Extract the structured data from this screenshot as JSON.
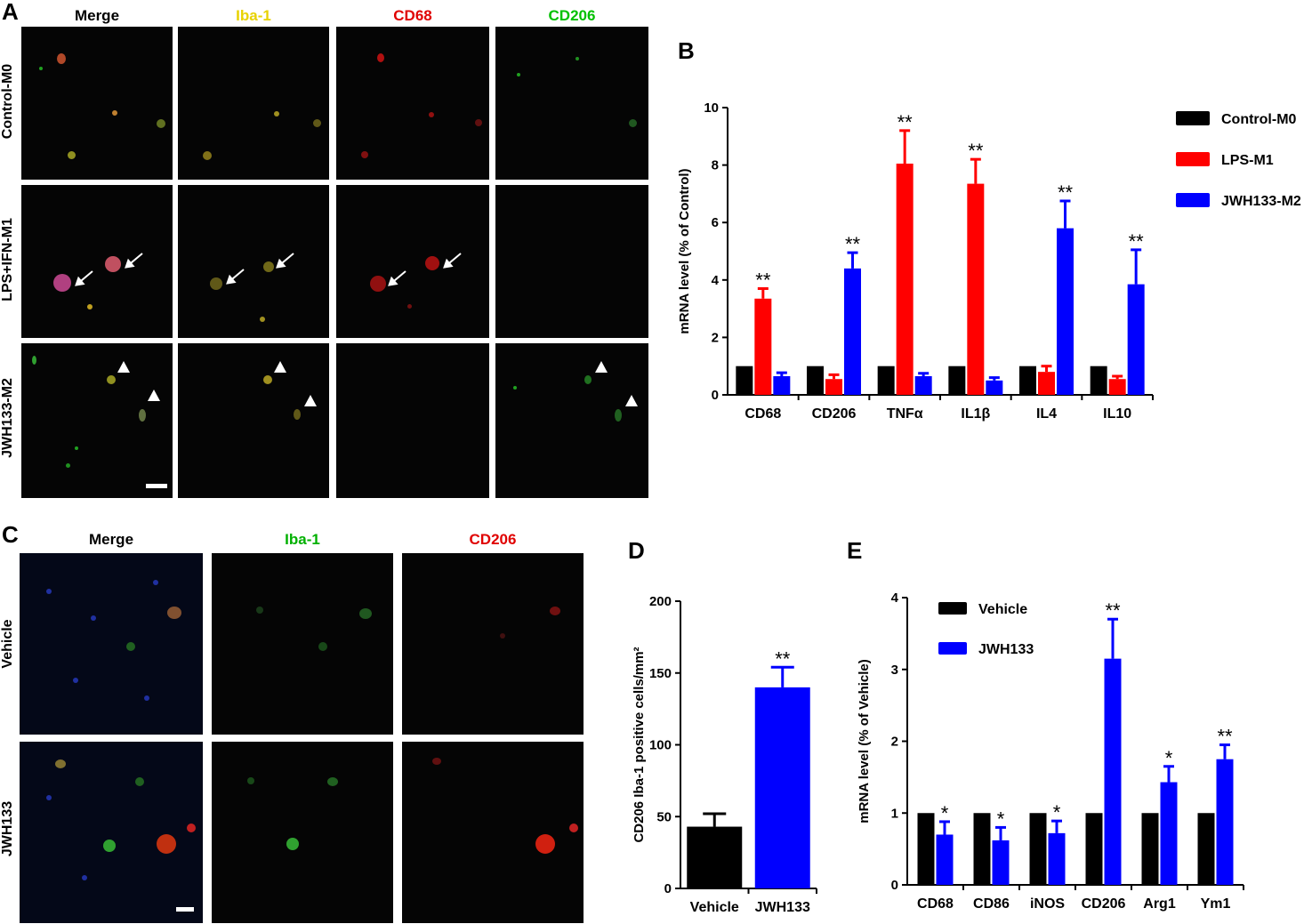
{
  "panels": {
    "a": "A",
    "b": "B",
    "c": "C",
    "d": "D",
    "e": "E"
  },
  "figure_a": {
    "columns": [
      {
        "label": "Merge",
        "color": "#000000"
      },
      {
        "label": "Iba-1",
        "color": "#e8d200"
      },
      {
        "label": "CD68",
        "color": "#e00000"
      },
      {
        "label": "CD206",
        "color": "#00c000"
      }
    ],
    "rows": [
      "Control-M0",
      "LPS+IFN-M1",
      "JWH133-M2"
    ]
  },
  "figure_c": {
    "columns": [
      {
        "label": "Merge",
        "color": "#000000"
      },
      {
        "label": "Iba-1",
        "color": "#00b000"
      },
      {
        "label": "CD206",
        "color": "#e00000"
      }
    ],
    "rows": [
      "Vehicle",
      "JWH133"
    ]
  },
  "chart_data": [
    {
      "id": "B",
      "type": "bar",
      "categories": [
        "CD68",
        "CD206",
        "TNFα",
        "IL1β",
        "IL4",
        "IL10"
      ],
      "ylabel": "mRNA level (% of Control)",
      "ylim": [
        0,
        10
      ],
      "yticks": [
        0,
        2,
        4,
        6,
        8,
        10
      ],
      "legend_position": "right",
      "series": [
        {
          "name": "Control-M0",
          "color": "#000000",
          "values": [
            1,
            1,
            1,
            1,
            1,
            1
          ],
          "errors": [
            0,
            0,
            0,
            0,
            0,
            0
          ]
        },
        {
          "name": "LPS-M1",
          "color": "#ff0000",
          "values": [
            3.35,
            0.55,
            8.05,
            7.35,
            0.8,
            0.55
          ],
          "errors": [
            0.35,
            0.15,
            1.15,
            0.85,
            0.2,
            0.1
          ]
        },
        {
          "name": "JWH133-M2",
          "color": "#0000ff",
          "values": [
            0.65,
            4.4,
            0.65,
            0.5,
            5.8,
            3.85
          ],
          "errors": [
            0.12,
            0.55,
            0.1,
            0.1,
            0.95,
            1.2
          ]
        }
      ],
      "annotations": [
        {
          "category": "CD68",
          "series": "LPS-M1",
          "text": "**"
        },
        {
          "category": "CD206",
          "series": "JWH133-M2",
          "text": "**"
        },
        {
          "category": "TNFα",
          "series": "LPS-M1",
          "text": "**"
        },
        {
          "category": "IL1β",
          "series": "LPS-M1",
          "text": "**"
        },
        {
          "category": "IL4",
          "series": "JWH133-M2",
          "text": "**"
        },
        {
          "category": "IL10",
          "series": "JWH133-M2",
          "text": "**"
        }
      ]
    },
    {
      "id": "D",
      "type": "bar",
      "categories": [
        "Vehicle",
        "JWH133"
      ],
      "ylabel": "CD206 Iba-1 positive cells/mm²",
      "ylim": [
        0,
        200
      ],
      "yticks": [
        0,
        50,
        100,
        150,
        200
      ],
      "series": [
        {
          "values": [
            43,
            140
          ],
          "errors": [
            9,
            14
          ],
          "colors": [
            "#000000",
            "#0000ff"
          ]
        }
      ],
      "annotations": [
        {
          "category": "JWH133",
          "text": "**"
        }
      ]
    },
    {
      "id": "E",
      "type": "bar",
      "categories": [
        "CD68",
        "CD86",
        "iNOS",
        "CD206",
        "Arg1",
        "Ym1"
      ],
      "ylabel": "mRNA level (% of Vehicle)",
      "ylim": [
        0,
        4
      ],
      "yticks": [
        0,
        1,
        2,
        3,
        4
      ],
      "legend_position": "top-left",
      "series": [
        {
          "name": "Vehicle",
          "color": "#000000",
          "values": [
            1,
            1,
            1,
            1,
            1,
            1
          ],
          "errors": [
            0,
            0,
            0,
            0,
            0,
            0
          ]
        },
        {
          "name": "JWH133",
          "color": "#0000ff",
          "values": [
            0.7,
            0.62,
            0.72,
            3.15,
            1.43,
            1.75
          ],
          "errors": [
            0.18,
            0.18,
            0.17,
            0.55,
            0.22,
            0.2
          ]
        }
      ],
      "annotations": [
        {
          "category": "CD68",
          "series": "JWH133",
          "text": "*"
        },
        {
          "category": "CD86",
          "series": "JWH133",
          "text": "*"
        },
        {
          "category": "iNOS",
          "series": "JWH133",
          "text": "*"
        },
        {
          "category": "CD206",
          "series": "JWH133",
          "text": "**"
        },
        {
          "category": "Arg1",
          "series": "JWH133",
          "text": "*"
        },
        {
          "category": "Ym1",
          "series": "JWH133",
          "text": "**"
        }
      ]
    }
  ]
}
